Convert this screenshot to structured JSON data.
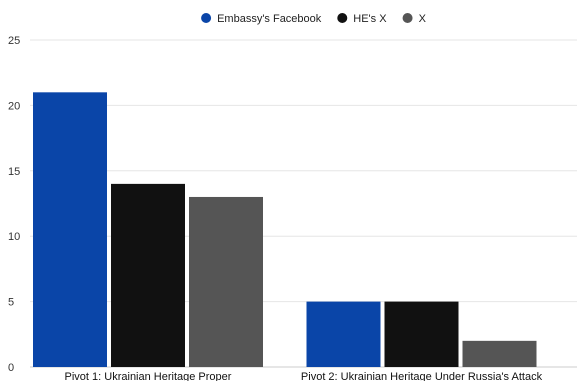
{
  "chart_data": {
    "type": "bar",
    "categories": [
      "Pivot 1: Ukrainian Heritage Proper",
      "Pivot 2: Ukrainian Heritage Under Russia's Attack"
    ],
    "series": [
      {
        "name": "Embassy's Facebook",
        "values": [
          21,
          5
        ],
        "color": "#0a45a8"
      },
      {
        "name": "HE's X",
        "values": [
          14,
          5
        ],
        "color": "#111111"
      },
      {
        "name": "X",
        "values": [
          13,
          2
        ],
        "color": "#555555"
      }
    ],
    "ylim": [
      0,
      25
    ],
    "yticks": [
      0,
      5,
      10,
      15,
      20,
      25
    ],
    "grid": true,
    "legend": "top-center"
  }
}
